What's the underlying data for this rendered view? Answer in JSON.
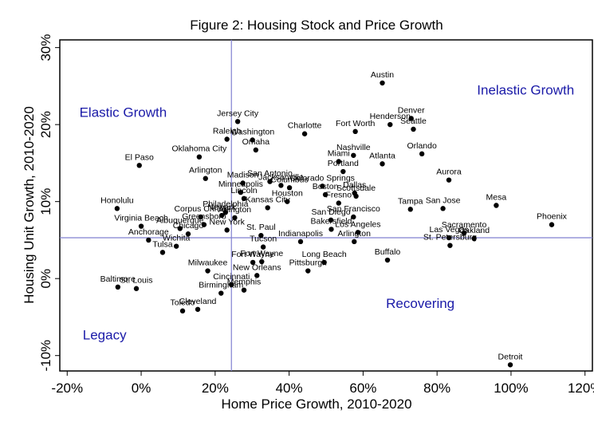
{
  "chart_data": {
    "type": "scatter",
    "title": "Figure 2: Housing Stock and Price Growth",
    "xlabel": "Home Price Growth, 2010-2020",
    "ylabel": "Housing Unit Growth, 2010-2020",
    "xlim": [
      -22,
      122
    ],
    "ylim": [
      -12,
      31
    ],
    "x_ticks": [
      -20,
      0,
      20,
      40,
      60,
      80,
      100,
      120
    ],
    "x_tick_labels": [
      "-20%",
      "0%",
      "20%",
      "40%",
      "60%",
      "80%",
      "100%",
      "120%"
    ],
    "y_ticks": [
      -10,
      0,
      10,
      20,
      30
    ],
    "y_tick_labels": [
      "-10%",
      "0%",
      "10%",
      "20%",
      "30%"
    ],
    "grid": false,
    "reference_lines": {
      "x": 24.4,
      "y": 5.3,
      "color": "#8080d0"
    },
    "quadrant_labels": [
      {
        "text": "Elastic Growth",
        "x": -16.7,
        "y": 21.0
      },
      {
        "text": "Inelastic Growth",
        "x": 90.8,
        "y": 23.9
      },
      {
        "text": "Recovering",
        "x": 66.2,
        "y": -3.8
      },
      {
        "text": "Legacy",
        "x": -15.8,
        "y": -7.9
      }
    ],
    "quadrant_color": "#1a1aa8",
    "points": [
      {
        "label": "Austin",
        "x": 65.2,
        "y": 25.4
      },
      {
        "label": "Denver",
        "x": 73.0,
        "y": 20.8
      },
      {
        "label": "Seattle",
        "x": 73.6,
        "y": 19.4
      },
      {
        "label": "Henderson",
        "x": 67.3,
        "y": 20.0
      },
      {
        "label": "Orlando",
        "x": 75.9,
        "y": 16.2
      },
      {
        "label": "Fort Worth",
        "x": 57.9,
        "y": 19.1
      },
      {
        "label": "Nashville",
        "x": 57.4,
        "y": 16.0
      },
      {
        "label": "Miami",
        "x": 53.4,
        "y": 15.2
      },
      {
        "label": "Atlanta",
        "x": 65.2,
        "y": 14.9
      },
      {
        "label": "Portland",
        "x": 54.6,
        "y": 13.9
      },
      {
        "label": "Charlotte",
        "x": 44.2,
        "y": 18.8
      },
      {
        "label": "Jersey City",
        "x": 26.1,
        "y": 20.4
      },
      {
        "label": "Washington",
        "x": 30.1,
        "y": 18.0
      },
      {
        "label": "Raleigh",
        "x": 23.2,
        "y": 18.1
      },
      {
        "label": "Omaha",
        "x": 31.0,
        "y": 16.7
      },
      {
        "label": "Oklahoma City",
        "x": 15.7,
        "y": 15.8
      },
      {
        "label": "El Paso",
        "x": -0.5,
        "y": 14.7
      },
      {
        "label": "Aurora",
        "x": 83.2,
        "y": 12.8
      },
      {
        "label": "Mesa",
        "x": 96.0,
        "y": 9.5
      },
      {
        "label": "Phoenix",
        "x": 111.0,
        "y": 7.0
      },
      {
        "label": "San Jose",
        "x": 81.6,
        "y": 9.1
      },
      {
        "label": "Tampa",
        "x": 72.8,
        "y": 9.0
      },
      {
        "label": "Sacramento",
        "x": 87.3,
        "y": 5.9
      },
      {
        "label": "Las Vegas",
        "x": 83.2,
        "y": 5.3
      },
      {
        "label": "Oakland",
        "x": 90.0,
        "y": 5.2
      },
      {
        "label": "St. Petersburg",
        "x": 83.5,
        "y": 4.3
      },
      {
        "label": "Detroit",
        "x": 99.8,
        "y": -11.2
      },
      {
        "label": "Dallas",
        "x": 57.7,
        "y": 11.1
      },
      {
        "label": "Scottsdale",
        "x": 58.1,
        "y": 10.7
      },
      {
        "label": "San Francisco",
        "x": 57.4,
        "y": 8.0
      },
      {
        "label": "Los Angeles",
        "x": 58.6,
        "y": 6.0
      },
      {
        "label": "Arlington",
        "x": 57.6,
        "y": 4.8
      },
      {
        "label": "Buffalo",
        "x": 66.6,
        "y": 2.4
      },
      {
        "label": "Colorado Springs",
        "x": 49.0,
        "y": 12.0
      },
      {
        "label": "Boston",
        "x": 49.8,
        "y": 10.9
      },
      {
        "label": "Fresno",
        "x": 53.4,
        "y": 9.8
      },
      {
        "label": "San Diego",
        "x": 51.3,
        "y": 7.6
      },
      {
        "label": "Bakersfield",
        "x": 51.4,
        "y": 6.4
      },
      {
        "label": "Indianapolis",
        "x": 43.1,
        "y": 4.8
      },
      {
        "label": "Long Beach",
        "x": 49.5,
        "y": 2.1
      },
      {
        "label": "Pittsburgh",
        "x": 45.1,
        "y": 1.0
      },
      {
        "label": "Arlington",
        "x": 17.4,
        "y": 13.0
      },
      {
        "label": "Madison",
        "x": 27.5,
        "y": 12.4
      },
      {
        "label": "San Antonio",
        "x": 34.8,
        "y": 12.6
      },
      {
        "label": "Jacksonville",
        "x": 37.8,
        "y": 12.1
      },
      {
        "label": "Columbus",
        "x": 40.1,
        "y": 11.8
      },
      {
        "label": "Minneapolis",
        "x": 26.9,
        "y": 11.2
      },
      {
        "label": "Lincoln",
        "x": 27.8,
        "y": 10.4
      },
      {
        "label": "Houston",
        "x": 39.5,
        "y": 10.0
      },
      {
        "label": "Kansas City",
        "x": 34.2,
        "y": 9.2
      },
      {
        "label": "Honolulu",
        "x": -6.5,
        "y": 9.1
      },
      {
        "label": "Philadelphia",
        "x": 22.8,
        "y": 8.6
      },
      {
        "label": "Newark",
        "x": 21.8,
        "y": 8.2
      },
      {
        "label": "Corpus Christi",
        "x": 16.1,
        "y": 8.0
      },
      {
        "label": "Arlington",
        "x": 25.3,
        "y": 7.9
      },
      {
        "label": "Greensboro",
        "x": 17.0,
        "y": 7.0
      },
      {
        "label": "Virginia Beach",
        "x": 0.0,
        "y": 6.8
      },
      {
        "label": "Albuquerque",
        "x": 10.5,
        "y": 6.5
      },
      {
        "label": "New York",
        "x": 23.2,
        "y": 6.3
      },
      {
        "label": "Chicago",
        "x": 12.7,
        "y": 5.8
      },
      {
        "label": "St. Paul",
        "x": 32.4,
        "y": 5.6
      },
      {
        "label": "Anchorage",
        "x": 2.0,
        "y": 5.0
      },
      {
        "label": "Tucson",
        "x": 33.0,
        "y": 4.1
      },
      {
        "label": "Wichita",
        "x": 9.5,
        "y": 4.2
      },
      {
        "label": "Tulsa",
        "x": 5.8,
        "y": 3.4
      },
      {
        "label": "Fort Wayne",
        "x": 30.2,
        "y": 2.1
      },
      {
        "label": "Fort Wayne",
        "x": 32.6,
        "y": 2.2
      },
      {
        "label": "Milwaukee",
        "x": 18.0,
        "y": 1.0
      },
      {
        "label": "New Orleans",
        "x": 31.3,
        "y": 0.4
      },
      {
        "label": "Cincinnati",
        "x": 24.4,
        "y": -0.8
      },
      {
        "label": "Birmingham",
        "x": 21.6,
        "y": -1.9
      },
      {
        "label": "Memphis",
        "x": 27.8,
        "y": -1.5
      },
      {
        "label": "Baltimore",
        "x": -6.3,
        "y": -1.1
      },
      {
        "label": "St. Louis",
        "x": -1.3,
        "y": -1.3
      },
      {
        "label": "Cleveland",
        "x": 15.3,
        "y": -4.0
      },
      {
        "label": "Toledo",
        "x": 11.2,
        "y": -4.2
      }
    ]
  }
}
